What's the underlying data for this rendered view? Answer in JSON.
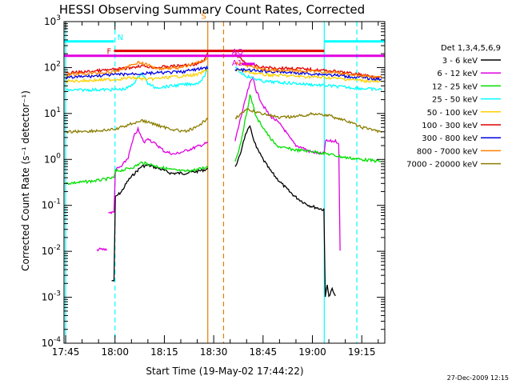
{
  "chart_data": {
    "type": "line",
    "title": "HESSI Observing Summary Count Rates, Corrected",
    "xlabel": "Start Time (19-May-02 17:44:22)",
    "ylabel": "Corrected Count Rate (s⁻¹ detector⁻¹)",
    "yscale": "log",
    "ylim": [
      0.0001,
      1000
    ],
    "xlim_minutes_after_1745": [
      -0.5,
      97
    ],
    "x_tick_labels": [
      "17:45",
      "18:00",
      "18:15",
      "18:30",
      "18:45",
      "19:00",
      "19:15"
    ],
    "y_tick_labels": [
      {
        "base": "10",
        "exp": "-4"
      },
      {
        "base": "10",
        "exp": "-3"
      },
      {
        "base": "10",
        "exp": "-2"
      },
      {
        "base": "10",
        "exp": "-1"
      },
      {
        "base": "10",
        "exp": "0"
      },
      {
        "base": "10",
        "exp": "1"
      },
      {
        "base": "10",
        "exp": "2"
      },
      {
        "base": "10",
        "exp": "3"
      }
    ],
    "legend_title": "Det 1,3,4,5,6,9",
    "legend_position": "right",
    "stamp": "27-Dec-2009 12:15",
    "series": [
      {
        "name": "3 - 6 keV",
        "color": "#000000",
        "points": [
          [
            14,
            0.0023
          ],
          [
            14.7,
            0.0023
          ],
          [
            15.1,
            0.15
          ],
          [
            17,
            0.2
          ],
          [
            19,
            0.35
          ],
          [
            21,
            0.5
          ],
          [
            23,
            0.7
          ],
          [
            25,
            0.75
          ],
          [
            28,
            0.65
          ],
          [
            32,
            0.5
          ],
          [
            36,
            0.5
          ],
          [
            40,
            0.55
          ],
          [
            43.2,
            0.62
          ],
          [
            null,
            null
          ],
          [
            51.5,
            0.7
          ],
          [
            53,
            1.2
          ],
          [
            54,
            2.5
          ],
          [
            55,
            4
          ],
          [
            56,
            5
          ],
          [
            57,
            3
          ],
          [
            58,
            1.8
          ],
          [
            60,
            1
          ],
          [
            62,
            0.6
          ],
          [
            64,
            0.4
          ],
          [
            66,
            0.28
          ],
          [
            68,
            0.2
          ],
          [
            70,
            0.15
          ],
          [
            72,
            0.12
          ],
          [
            74,
            0.1
          ],
          [
            76,
            0.09
          ],
          [
            78.5,
            0.08
          ],
          [
            78.9,
            0.001
          ],
          [
            79.5,
            0.002
          ],
          [
            80,
            0.001
          ],
          [
            81,
            0.0015
          ],
          [
            82,
            0.001
          ]
        ]
      },
      {
        "name": "6 - 12 keV",
        "color": "#e000e0",
        "points": [
          [
            9.5,
            0.011
          ],
          [
            12.5,
            0.011
          ],
          [
            null,
            null
          ],
          [
            13,
            0.07
          ],
          [
            14.7,
            0.07
          ],
          [
            15.1,
            0.6
          ],
          [
            17,
            0.7
          ],
          [
            19,
            1.1
          ],
          [
            20,
            2
          ],
          [
            21,
            3.5
          ],
          [
            22,
            4.5
          ],
          [
            23,
            3
          ],
          [
            24,
            2.3
          ],
          [
            25,
            3
          ],
          [
            26,
            2.5
          ],
          [
            28,
            2
          ],
          [
            30,
            1.5
          ],
          [
            33,
            1.3
          ],
          [
            36,
            1.5
          ],
          [
            40,
            1.9
          ],
          [
            43.2,
            2.3
          ],
          [
            null,
            null
          ],
          [
            51.5,
            2.5
          ],
          [
            53,
            7
          ],
          [
            55,
            25
          ],
          [
            56,
            45
          ],
          [
            57,
            60
          ],
          [
            58,
            30
          ],
          [
            60,
            15
          ],
          [
            62,
            9
          ],
          [
            64,
            7
          ],
          [
            66,
            5
          ],
          [
            68,
            3
          ],
          [
            70,
            2
          ],
          [
            72,
            1.8
          ],
          [
            74,
            1.5
          ],
          [
            76,
            1.4
          ],
          [
            78.5,
            1.3
          ],
          [
            79,
            2.5
          ],
          [
            82,
            2.5
          ],
          [
            83,
            2.3
          ],
          [
            83.4,
            0.01
          ]
        ]
      },
      {
        "name": "12 - 25 keV",
        "color": "#00e000",
        "points": [
          [
            0,
            0.3
          ],
          [
            5,
            0.32
          ],
          [
            10,
            0.35
          ],
          [
            14.7,
            0.4
          ],
          [
            15.1,
            0.55
          ],
          [
            18,
            0.6
          ],
          [
            21,
            0.7
          ],
          [
            23,
            0.85
          ],
          [
            25,
            0.8
          ],
          [
            28,
            0.7
          ],
          [
            32,
            0.6
          ],
          [
            36,
            0.55
          ],
          [
            40,
            0.6
          ],
          [
            43.2,
            0.7
          ],
          [
            null,
            null
          ],
          [
            51.5,
            0.9
          ],
          [
            53,
            2
          ],
          [
            55,
            10
          ],
          [
            56,
            25
          ],
          [
            57,
            15
          ],
          [
            58,
            8
          ],
          [
            60,
            5
          ],
          [
            62,
            3
          ],
          [
            64,
            2
          ],
          [
            66,
            1.8
          ],
          [
            70,
            1.6
          ],
          [
            75,
            1.5
          ],
          [
            80,
            1.3
          ],
          [
            85,
            1.1
          ],
          [
            90,
            1
          ],
          [
            96,
            0.9
          ]
        ]
      },
      {
        "name": "25 - 50 keV",
        "color": "#00ffff",
        "points": [
          [
            0,
            32
          ],
          [
            10,
            33
          ],
          [
            15,
            33
          ],
          [
            18,
            34
          ],
          [
            20,
            40
          ],
          [
            22,
            60
          ],
          [
            23,
            80
          ],
          [
            25,
            45
          ],
          [
            27,
            37
          ],
          [
            30,
            38
          ],
          [
            35,
            42
          ],
          [
            40,
            45
          ],
          [
            42,
            60
          ],
          [
            43.2,
            100
          ],
          [
            null,
            null
          ],
          [
            51.5,
            100
          ],
          [
            53,
            80
          ],
          [
            55,
            65
          ],
          [
            60,
            50
          ],
          [
            70,
            45
          ],
          [
            80,
            40
          ],
          [
            90,
            35
          ],
          [
            96,
            33
          ]
        ]
      },
      {
        "name": "50 - 100 keV",
        "color": "#ffd000",
        "points": [
          [
            0,
            50
          ],
          [
            15,
            55
          ],
          [
            20,
            60
          ],
          [
            25,
            55
          ],
          [
            30,
            60
          ],
          [
            40,
            70
          ],
          [
            43.2,
            90
          ],
          [
            null,
            null
          ],
          [
            51.5,
            90
          ],
          [
            60,
            70
          ],
          [
            80,
            60
          ],
          [
            96,
            48
          ]
        ]
      },
      {
        "name": "100 - 300 keV",
        "color": "#e00000",
        "points": [
          [
            0,
            75
          ],
          [
            10,
            85
          ],
          [
            18,
            95
          ],
          [
            23,
            110
          ],
          [
            27,
            100
          ],
          [
            35,
            110
          ],
          [
            40,
            120
          ],
          [
            42,
            140
          ],
          [
            43.2,
            200
          ],
          [
            null,
            null
          ],
          [
            51.5,
            200
          ],
          [
            55,
            120
          ],
          [
            60,
            100
          ],
          [
            70,
            95
          ],
          [
            80,
            85
          ],
          [
            90,
            70
          ],
          [
            96,
            60
          ]
        ]
      },
      {
        "name": "300 - 800 keV",
        "color": "#0000e0",
        "points": [
          [
            0,
            60
          ],
          [
            15,
            70
          ],
          [
            25,
            75
          ],
          [
            35,
            80
          ],
          [
            43.2,
            100
          ],
          [
            null,
            null
          ],
          [
            51.5,
            90
          ],
          [
            65,
            80
          ],
          [
            80,
            70
          ],
          [
            96,
            55
          ]
        ]
      },
      {
        "name": "800 - 7000 keV",
        "color": "#ff8000",
        "points": [
          [
            0,
            70
          ],
          [
            15,
            80
          ],
          [
            22,
            130
          ],
          [
            24,
            120
          ],
          [
            28,
            95
          ],
          [
            35,
            100
          ],
          [
            43.2,
            150
          ],
          [
            null,
            null
          ],
          [
            51.5,
            130
          ],
          [
            60,
            90
          ],
          [
            80,
            80
          ],
          [
            96,
            60
          ]
        ]
      },
      {
        "name": "7000 - 20000 keV",
        "color": "#8b7d00",
        "points": [
          [
            0,
            4
          ],
          [
            10,
            4.2
          ],
          [
            15,
            4.5
          ],
          [
            20,
            6
          ],
          [
            23,
            7
          ],
          [
            25,
            6.5
          ],
          [
            30,
            5
          ],
          [
            36,
            4
          ],
          [
            40,
            5
          ],
          [
            43.2,
            8
          ],
          [
            null,
            null
          ],
          [
            51.5,
            8
          ],
          [
            55,
            12
          ],
          [
            60,
            10
          ],
          [
            65,
            8
          ],
          [
            72,
            9
          ],
          [
            76,
            10
          ],
          [
            80,
            9
          ],
          [
            85,
            7
          ],
          [
            90,
            5
          ],
          [
            96,
            4
          ]
        ]
      }
    ],
    "flag_bars": [
      {
        "label": "N",
        "color": "#00ffff",
        "y": 370,
        "ranges": [
          [
            -0.5,
            14.7
          ],
          [
            78.6,
            97
          ]
        ]
      },
      {
        "label": "S",
        "color": "#ff8000",
        "y": 1300,
        "ranges": [
          [
            43.7,
            47.8
          ]
        ]
      },
      {
        "label": "F",
        "color": "#e00000",
        "y": 230,
        "ranges": [
          [
            14.7,
            78.6
          ]
        ]
      },
      {
        "label": "AQ",
        "color": "#e000e0",
        "y": 180,
        "ranges": [
          [
            -0.5,
            97
          ]
        ]
      },
      {
        "label": "A1",
        "color": "#e000e0",
        "y": 120,
        "ranges": [
          [
            53.5,
            57.5
          ]
        ]
      }
    ],
    "vertical_lines": [
      {
        "x": 0,
        "color": "#00ffff",
        "style": "solid"
      },
      {
        "x": 15,
        "color": "#00ffff",
        "style": "dashed"
      },
      {
        "x": 43.2,
        "color": "#e08000",
        "style": "solid"
      },
      {
        "x": 48,
        "color": "#e08000",
        "style": "dashed"
      },
      {
        "x": 78.6,
        "color": "#00ffff",
        "style": "solid"
      },
      {
        "x": 88.5,
        "color": "#00ffff",
        "style": "dashed"
      }
    ]
  }
}
